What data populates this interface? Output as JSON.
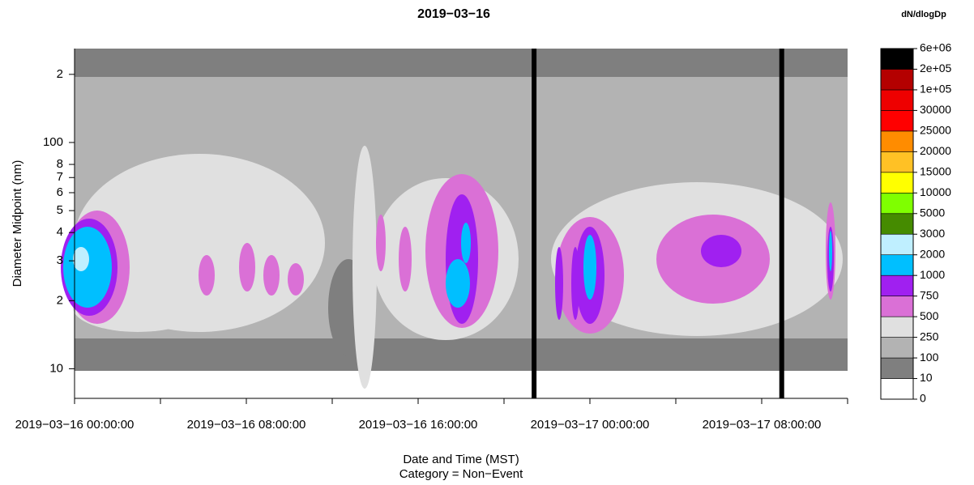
{
  "chart_data": {
    "type": "contour",
    "title": "2019−03−16",
    "x_label": "Date and Time (MST)",
    "subtitle": "Category = Non−Event",
    "y_label": "Diameter Midpoint (nm)",
    "log_y": true,
    "xlim": [
      "2019-03-16 00:00:00",
      "2019-03-17 12:00:00"
    ],
    "xticks": [
      {
        "value": "2019-03-16 00:00:00",
        "label": "2019−03−16 00:00:00"
      },
      {
        "value": "2019-03-16 04:00:00",
        "label": null
      },
      {
        "value": "2019-03-16 08:00:00",
        "label": "2019−03−16 08:00:00"
      },
      {
        "value": "2019-03-16 12:00:00",
        "label": null
      },
      {
        "value": "2019-03-16 16:00:00",
        "label": "2019−03−16 16:00:00"
      },
      {
        "value": "2019-03-16 20:00:00",
        "label": null
      },
      {
        "value": "2019-03-17 00:00:00",
        "label": "2019−03−17 00:00:00"
      },
      {
        "value": "2019-03-17 04:00:00",
        "label": null
      },
      {
        "value": "2019-03-17 08:00:00",
        "label": "2019−03−17 08:00:00"
      },
      {
        "value": "2019-03-17 12:00:00",
        "label": null
      }
    ],
    "ylim": [
      7.4,
      260
    ],
    "yticks": [
      {
        "value": 200,
        "label": "2"
      },
      100,
      {
        "value": 80,
        "label": "8"
      },
      {
        "value": 70,
        "label": "7"
      },
      {
        "value": 60,
        "label": "6"
      },
      {
        "value": 50,
        "label": "5"
      },
      {
        "value": 40,
        "label": "4"
      },
      {
        "value": 30,
        "label": "3"
      },
      {
        "value": 20,
        "label": "2"
      },
      10
    ],
    "gaps": [
      "2019-03-16 21:24:00",
      "2019-03-17 08:56:00"
    ],
    "color_scale": {
      "title": "dN/dlogDp",
      "breaks": [
        0,
        10,
        100,
        250,
        500,
        750,
        1000,
        2000,
        3000,
        5000,
        10000,
        15000,
        20000,
        25000,
        30000,
        {
          "value": 100000,
          "label": "1e+05"
        },
        {
          "value": 200000,
          "label": "2e+05"
        },
        {
          "value": 6000000,
          "label": "6e+06"
        }
      ],
      "colors": [
        "#ffffff",
        "#7f7f7f",
        "#b3b3b3",
        "#e0e0e0",
        "#da70d6",
        "#a020f0",
        "#00bfff",
        "#bfefff",
        "#458b00",
        "#7fff00",
        "#ffff00",
        "#ffc125",
        "#ff8c00",
        "#ff0000",
        "#ee0000",
        "#b40000",
        "#000000"
      ]
    }
  }
}
